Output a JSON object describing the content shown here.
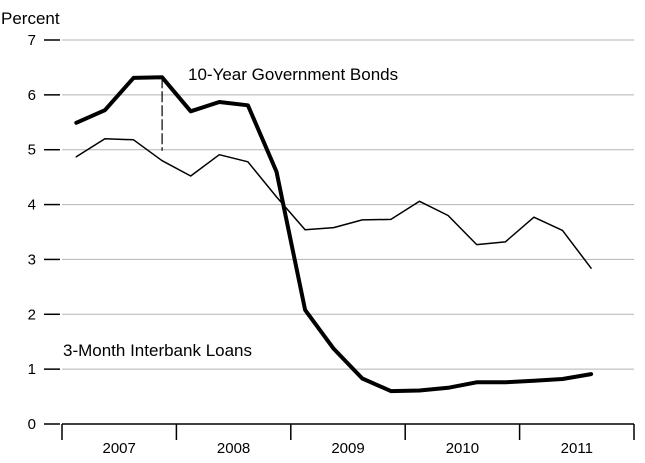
{
  "chart_data": {
    "type": "line",
    "ylabel": "Percent",
    "ylim": [
      0,
      7
    ],
    "y_ticks": [
      "0",
      "1",
      "2",
      "3",
      "4",
      "5",
      "6",
      "7"
    ],
    "x_ticks": [
      "2007",
      "2008",
      "2009",
      "2010",
      "2011"
    ],
    "xlim": [
      2007.0,
      2012.0
    ],
    "grid": "horizontal",
    "legend": "none",
    "series": [
      {
        "name": "3-Month Interbank Loans",
        "x": [
          2007.125,
          2007.375,
          2007.625,
          2007.875,
          2008.125,
          2008.375,
          2008.625,
          2008.875,
          2009.125,
          2009.375,
          2009.625,
          2009.875,
          2010.125,
          2010.375,
          2010.625,
          2010.875,
          2011.125,
          2011.375,
          2011.625
        ],
        "values": [
          4.87,
          5.2,
          5.18,
          4.8,
          4.52,
          4.91,
          4.78,
          4.14,
          3.54,
          3.58,
          3.72,
          3.73,
          4.06,
          3.8,
          3.27,
          3.32,
          3.77,
          3.53,
          2.84
        ],
        "color": "#000000",
        "width": 1.5
      },
      {
        "name": "10-Year Government Bonds",
        "x": [
          2007.125,
          2007.375,
          2007.625,
          2007.875,
          2008.125,
          2008.375,
          2008.625,
          2008.875,
          2009.125,
          2009.375,
          2009.625,
          2009.875,
          2010.125,
          2010.375,
          2010.625,
          2010.875,
          2011.125,
          2011.375,
          2011.625
        ],
        "values": [
          5.49,
          5.72,
          6.31,
          6.32,
          5.7,
          5.87,
          5.81,
          4.6,
          2.08,
          1.37,
          0.83,
          0.6,
          0.61,
          0.66,
          0.76,
          0.76,
          0.79,
          0.82,
          0.91
        ],
        "color": "#000000",
        "width": 4
      }
    ],
    "annotations": [
      {
        "text": "10-Year Government Bonds",
        "leader_x": 2007.875,
        "leader_y": [
          6.32,
          4.98
        ]
      },
      {
        "text": "3-Month Interbank Loans"
      }
    ]
  }
}
